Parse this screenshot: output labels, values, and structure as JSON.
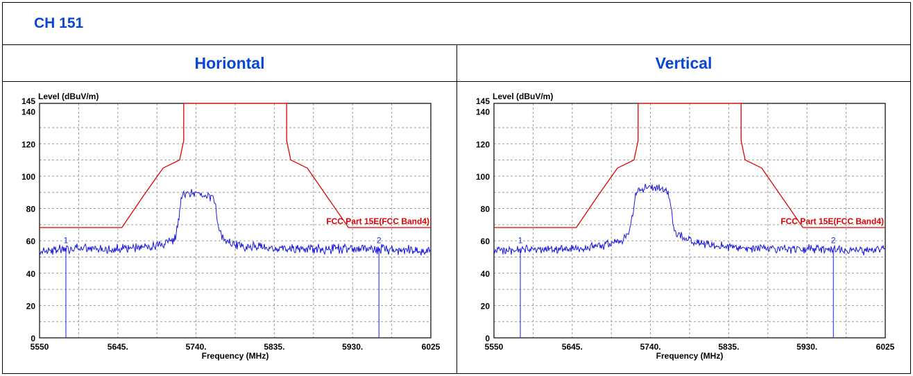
{
  "channel_title": "CH 151",
  "panels": [
    {
      "heading": "Horiontal"
    },
    {
      "heading": "Vertical"
    }
  ],
  "colors": {
    "accent": "#0a46d6",
    "trace": "#1a1adc",
    "limit": "#e00000",
    "grid": "#9a9a9a"
  },
  "chart_data": [
    {
      "type": "line",
      "ylabel": "Level (dBuV/m)",
      "xlabel": "Frequency (MHz)",
      "xlim": [
        5550,
        6025
      ],
      "ylim": [
        0,
        145
      ],
      "x_ticks": [
        "5550",
        "5645.",
        "5740.",
        "5835.",
        "5930.",
        "6025"
      ],
      "x_tick_values": [
        5550,
        5645,
        5740,
        5835,
        5930,
        6025
      ],
      "y_ticks": [
        "0",
        "20",
        "40",
        "60",
        "80",
        "100",
        "120",
        "140",
        "145"
      ],
      "y_tick_values": [
        0,
        20,
        40,
        60,
        80,
        100,
        120,
        140,
        145
      ],
      "grid": true,
      "limit_label": "FCC Part 15E(FCC Band4)",
      "limit_line": {
        "name": "FCC Part 15E(FCC Band4)",
        "x": [
          5550,
          5650,
          5675,
          5700,
          5720,
          5725,
          5725,
          5850,
          5850,
          5855,
          5875,
          5925,
          6025
        ],
        "y": [
          68.2,
          68.2,
          87,
          105,
          110,
          122,
          145,
          145,
          122,
          110,
          105,
          68.2,
          68.2
        ]
      },
      "trace": {
        "x": [
          5550,
          5600,
          5640,
          5680,
          5700,
          5710,
          5715,
          5718,
          5722,
          5724,
          5735,
          5745,
          5755,
          5760,
          5764,
          5768,
          5772,
          5790,
          5820,
          5850,
          5900,
          5950,
          6000,
          6025
        ],
        "y": [
          54,
          55,
          55,
          56,
          57,
          60,
          62,
          70,
          85,
          88,
          89,
          90,
          88,
          87,
          80,
          66,
          61,
          57,
          56,
          55,
          55,
          55,
          54,
          54
        ],
        "noise_amplitude": 2.3
      },
      "markers": [
        {
          "label": "1",
          "freq": 5582
        },
        {
          "label": "2",
          "freq": 5962
        }
      ]
    },
    {
      "type": "line",
      "ylabel": "Level (dBuV/m)",
      "xlabel": "Frequency (MHz)",
      "xlim": [
        5550,
        6025
      ],
      "ylim": [
        0,
        145
      ],
      "x_ticks": [
        "5550",
        "5645.",
        "5740.",
        "5835.",
        "5930.",
        "6025"
      ],
      "x_tick_values": [
        5550,
        5645,
        5740,
        5835,
        5930,
        6025
      ],
      "y_ticks": [
        "0",
        "20",
        "40",
        "60",
        "80",
        "100",
        "120",
        "140",
        "145"
      ],
      "y_tick_values": [
        0,
        20,
        40,
        60,
        80,
        100,
        120,
        140,
        145
      ],
      "grid": true,
      "limit_label": "FCC Part 15E(FCC Band4)",
      "limit_line": {
        "name": "FCC Part 15E(FCC Band4)",
        "x": [
          5550,
          5650,
          5675,
          5700,
          5720,
          5725,
          5725,
          5850,
          5850,
          5855,
          5875,
          5925,
          6025
        ],
        "y": [
          68.2,
          68.2,
          87,
          105,
          110,
          122,
          145,
          145,
          122,
          110,
          105,
          68.2,
          68.2
        ]
      },
      "trace": {
        "x": [
          5550,
          5600,
          5640,
          5680,
          5700,
          5710,
          5715,
          5718,
          5722,
          5724,
          5735,
          5745,
          5755,
          5760,
          5764,
          5768,
          5772,
          5790,
          5820,
          5850,
          5900,
          5950,
          6000,
          6025
        ],
        "y": [
          54,
          55,
          55,
          57,
          59,
          62,
          66,
          74,
          88,
          91,
          93,
          93,
          92,
          91,
          84,
          70,
          64,
          60,
          57,
          56,
          55,
          55,
          54,
          55
        ],
        "noise_amplitude": 2.1
      },
      "markers": [
        {
          "label": "1",
          "freq": 5582
        },
        {
          "label": "2",
          "freq": 5962
        }
      ]
    }
  ]
}
